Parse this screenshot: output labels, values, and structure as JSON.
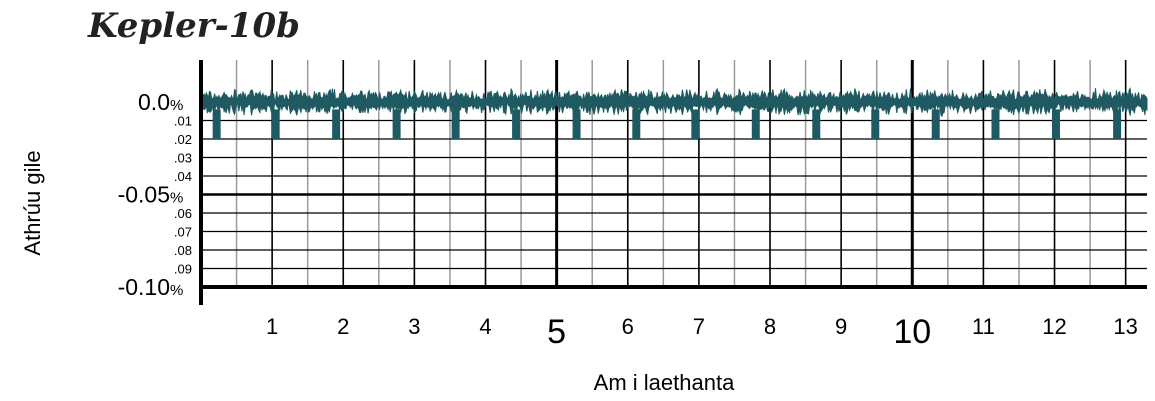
{
  "chart_data": {
    "type": "line",
    "title": "Kepler-10b",
    "xlabel": "Am i laethanta",
    "ylabel": "Athrúu gile",
    "xlim": [
      0,
      13.3
    ],
    "ylim": [
      -0.1,
      0.03
    ],
    "x_ticks": [
      {
        "value": 1,
        "label": "1",
        "major": false
      },
      {
        "value": 2,
        "label": "2",
        "major": false
      },
      {
        "value": 3,
        "label": "3",
        "major": false
      },
      {
        "value": 4,
        "label": "4",
        "major": false
      },
      {
        "value": 5,
        "label": "5",
        "major": true
      },
      {
        "value": 6,
        "label": "6",
        "major": false
      },
      {
        "value": 7,
        "label": "7",
        "major": false
      },
      {
        "value": 8,
        "label": "8",
        "major": false
      },
      {
        "value": 9,
        "label": "9",
        "major": false
      },
      {
        "value": 10,
        "label": "10",
        "major": true
      },
      {
        "value": 11,
        "label": "11",
        "major": false
      },
      {
        "value": 12,
        "label": "12",
        "major": false
      },
      {
        "value": 13,
        "label": "13",
        "major": false
      }
    ],
    "y_ticks": [
      {
        "value": 0.0,
        "label": "0.0",
        "unit": "%",
        "major": true
      },
      {
        "value": -0.01,
        "label": ".01",
        "major": false
      },
      {
        "value": -0.02,
        "label": ".02",
        "major": false
      },
      {
        "value": -0.03,
        "label": ".03",
        "major": false
      },
      {
        "value": -0.04,
        "label": ".04",
        "major": false
      },
      {
        "value": -0.05,
        "label": "-0.05",
        "unit": "%",
        "major": true
      },
      {
        "value": -0.06,
        "label": ".06",
        "major": false
      },
      {
        "value": -0.07,
        "label": ".07",
        "major": false
      },
      {
        "value": -0.08,
        "label": ".08",
        "major": false
      },
      {
        "value": -0.09,
        "label": ".09",
        "major": false
      },
      {
        "value": -0.1,
        "label": "-0.10",
        "unit": "%",
        "major": true
      }
    ],
    "grid": true,
    "series": [
      {
        "color": "#1f5a63",
        "baseline": 0.0,
        "noise_amplitude": 0.006,
        "transit_depth": -0.02,
        "transit_times": [
          0.22,
          1.05,
          1.9,
          2.75,
          3.58,
          4.43,
          5.28,
          6.12,
          6.95,
          7.8,
          8.65,
          9.48,
          10.33,
          11.17,
          12.02,
          12.88
        ]
      }
    ]
  }
}
